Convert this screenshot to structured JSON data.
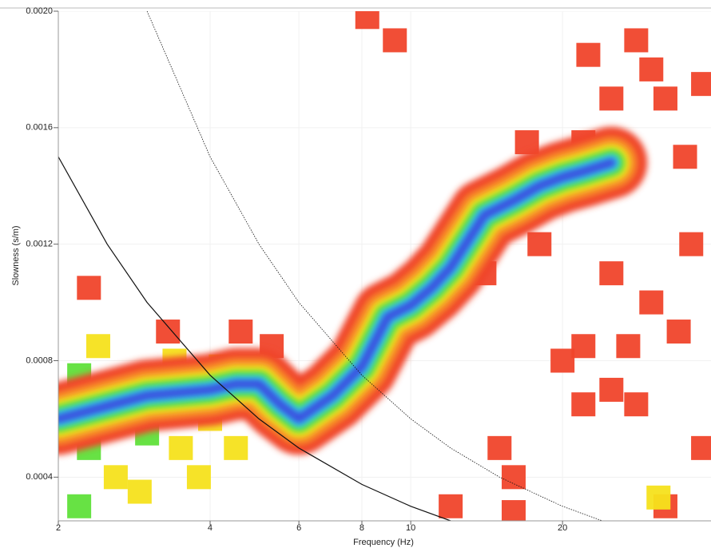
{
  "chart_data": {
    "type": "dispersion",
    "x_label": "Frequency (Hz)",
    "y_label": "Slowness (s/m)",
    "xlim": [
      2,
      39.4
    ],
    "ylim": [
      0.00025,
      0.002
    ],
    "log_x": true,
    "grid": true,
    "xticks": [
      2,
      4,
      6,
      8,
      10,
      20
    ],
    "yticks": [
      0.0004,
      0.0008,
      0.0012,
      0.0016,
      {
        "value": 0.002,
        "label": "0.0020"
      }
    ],
    "colorscale": [
      "#f0452b",
      "#f7862a",
      "#f5e11c",
      "#5fe03a",
      "#2fd6e8",
      "#3b4fe0",
      "#a21fe0"
    ],
    "ridge": {
      "x": [
        2,
        3,
        4,
        4.5,
        5,
        5.5,
        6,
        7,
        8,
        9,
        10,
        11,
        12,
        14,
        16,
        18,
        20,
        22,
        25
      ],
      "y": [
        0.0006,
        0.00068,
        0.0007,
        0.00072,
        0.00072,
        0.00065,
        0.0006,
        0.00068,
        0.00078,
        0.00095,
        0.00099,
        0.00105,
        0.00112,
        0.0013,
        0.00135,
        0.0014,
        0.00143,
        0.00145,
        0.00148
      ]
    },
    "cells": {
      "x": [
        8.2,
        9.3,
        22.5,
        28,
        30,
        32,
        25,
        17,
        22,
        35,
        38,
        36,
        25,
        14,
        18,
        30,
        34,
        27,
        22,
        20,
        25,
        28,
        22,
        15,
        16,
        38,
        12,
        16,
        32,
        2.3,
        3.3,
        4.6,
        5.3,
        2.2,
        2.5,
        2.8,
        3.2,
        3.6,
        2.3,
        2.6,
        3,
        3.5,
        4,
        2.2,
        2.9,
        3.8,
        4.5,
        2.4,
        3.4,
        4.2,
        31
      ],
      "y": [
        0.00198,
        0.0019,
        0.00185,
        0.0019,
        0.0018,
        0.0017,
        0.0017,
        0.00155,
        0.00155,
        0.0015,
        0.00175,
        0.0012,
        0.0011,
        0.0011,
        0.0012,
        0.001,
        0.0009,
        0.00085,
        0.00085,
        0.0008,
        0.0007,
        0.00065,
        0.00065,
        0.0005,
        0.0004,
        0.0005,
        0.0003,
        0.00028,
        0.0003,
        0.00105,
        0.0009,
        0.0009,
        0.00085,
        0.00075,
        0.0006,
        0.0007,
        0.00065,
        0.0007,
        0.0005,
        0.0004,
        0.00055,
        0.0005,
        0.0006,
        0.0003,
        0.00035,
        0.0004,
        0.0005,
        0.00085,
        0.0008,
        0.00078,
        0.00033
      ],
      "level": [
        0.1,
        0.1,
        0.1,
        0.1,
        0.1,
        0.1,
        0.1,
        0.1,
        0.1,
        0.1,
        0.1,
        0.1,
        0.1,
        0.1,
        0.1,
        0.1,
        0.1,
        0.1,
        0.1,
        0.1,
        0.1,
        0.1,
        0.1,
        0.1,
        0.1,
        0.1,
        0.1,
        0.1,
        0.1,
        0.1,
        0.1,
        0.1,
        0.1,
        0.5,
        0.55,
        0.6,
        0.5,
        0.6,
        0.45,
        0.4,
        0.45,
        0.35,
        0.4,
        0.5,
        0.35,
        0.3,
        0.3,
        0.3,
        0.3,
        0.3,
        0.4
      ]
    },
    "curves": [
      {
        "style": "solid",
        "x": [
          2,
          2.5,
          3,
          4,
          5,
          6,
          8,
          10,
          12
        ],
        "y": [
          0.0015,
          0.0012,
          0.001,
          0.00075,
          0.0006,
          0.0005,
          0.000375,
          0.0003,
          0.00025
        ]
      },
      {
        "style": "dotted",
        "x": [
          3,
          4,
          5,
          6,
          8,
          10,
          12,
          15,
          20,
          24
        ],
        "y": [
          0.002,
          0.0015,
          0.0012,
          0.001,
          0.00075,
          0.0006,
          0.0005,
          0.0004,
          0.0003,
          0.00025
        ]
      }
    ]
  }
}
